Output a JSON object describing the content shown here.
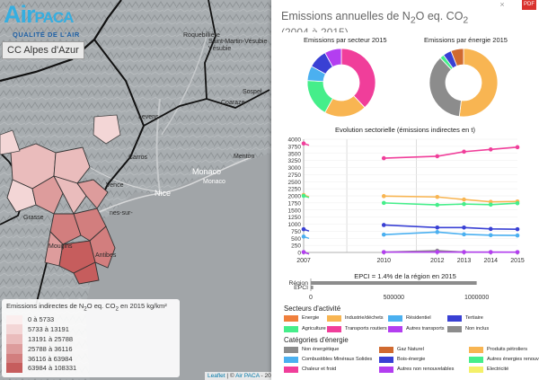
{
  "map": {
    "logo": {
      "brand_main": "Air",
      "brand_sub": "PACA",
      "tagline": "QUALITÉ DE L'AIR"
    },
    "epci_label": "CC Alpes d'Azur",
    "place_names": [
      {
        "text": "Roquebillière"
      },
      {
        "text": "Saint-Martin-Vésubie"
      },
      {
        "text": "Vésubie"
      },
      {
        "text": "Sospel"
      },
      {
        "text": "Coaraze"
      },
      {
        "text": "Levens"
      },
      {
        "text": "Carros"
      },
      {
        "text": "Menton"
      },
      {
        "text": "Monaco"
      },
      {
        "text": "Monaco"
      },
      {
        "text": "Nice"
      },
      {
        "text": "Vence"
      },
      {
        "text": "Grasse"
      },
      {
        "text": "nes-sur-"
      },
      {
        "text": "Mougins"
      },
      {
        "text": "Antibes"
      }
    ],
    "legend": {
      "title_pre": "Emissions indirectes de N",
      "title_sub1": "2",
      "title_mid": "O eq. CO",
      "title_sub2": "2",
      "title_post": " en 2015 kg/km²",
      "classes": [
        {
          "label": "0 à 5733",
          "color": "#fbeeee"
        },
        {
          "label": "5733 à 13191",
          "color": "#f3d6d6"
        },
        {
          "label": "13191 à 25788",
          "color": "#eabcbc"
        },
        {
          "label": "25788 à 36116",
          "color": "#dd9c9c"
        },
        {
          "label": "36116 à 63984",
          "color": "#d27e7e"
        },
        {
          "label": "63984 à 108331",
          "color": "#c65d5d"
        }
      ]
    },
    "attribution": {
      "leaflet": "Leaflet",
      "sep": " | © ",
      "airpaca": "Air PACA",
      "rest": " - 201... © Mapbox"
    }
  },
  "panel": {
    "title_pre": "Emissions annuelles de N",
    "title_sub1": "2",
    "title_mid": "O eq. CO",
    "title_sub2": "2",
    "subtitle": "(2004 à 2015)",
    "close": "×",
    "flag": "PDF",
    "donut_sector_title": "Emissions par secteur 2015",
    "donut_energy_title": "Emissions par énergie 2015",
    "line_title": "Evolution sectorielle (émissions indirectes en t)",
    "epci_pct": "EPCI = 1.4% de la région en 2015",
    "sector_title": "Secteurs d'activité",
    "category_title": "Catégories d'énergie",
    "sectors": [
      {
        "label": "Energie",
        "color": "#f07f3c"
      },
      {
        "label": "Industrie/déchets",
        "color": "#f8b552"
      },
      {
        "label": "Résidentiel",
        "color": "#4bb0f0"
      },
      {
        "label": "Tertiaire",
        "color": "#3940d4"
      },
      {
        "label": "Agriculture",
        "color": "#45ee8a"
      },
      {
        "label": "Transports routiers",
        "color": "#f03e9a"
      },
      {
        "label": "Autres transports",
        "color": "#b33ef0"
      },
      {
        "label": "Non inclus",
        "color": "#8c8c8c"
      }
    ],
    "categories": [
      {
        "label": "Non énergétique",
        "color": "#8c8c8c"
      },
      {
        "label": "Gaz Naturel",
        "color": "#d06a30"
      },
      {
        "label": "Produits pétroliers",
        "color": "#f8b552"
      },
      {
        "label": "Combustibles Minéraux Solides",
        "color": "#4bb0f0"
      },
      {
        "label": "Bois-énergie",
        "color": "#3940d4"
      },
      {
        "label": "Autres énergies renouvelables",
        "color": "#45ee8a"
      },
      {
        "label": "Chaleur et froid",
        "color": "#f03e9a"
      },
      {
        "label": "Autres non renouvelables",
        "color": "#b33ef0"
      },
      {
        "label": "Electricité",
        "color": "#f4f06a"
      }
    ]
  },
  "chart_data": [
    {
      "type": "pie",
      "title": "Emissions par secteur 2015",
      "slices": [
        {
          "name": "Transports routiers",
          "value": 38,
          "color": "#f03e9a"
        },
        {
          "name": "Industrie/déchets",
          "value": 20,
          "color": "#f8b552"
        },
        {
          "name": "Agriculture",
          "value": 18,
          "color": "#45ee8a"
        },
        {
          "name": "Résidentiel",
          "value": 7,
          "color": "#4bb0f0"
        },
        {
          "name": "Tertiaire",
          "value": 9,
          "color": "#3940d4"
        },
        {
          "name": "Autres transports",
          "value": 8,
          "color": "#b33ef0"
        }
      ]
    },
    {
      "type": "pie",
      "title": "Emissions par énergie 2015",
      "slices": [
        {
          "name": "Produits pétroliers",
          "value": 52,
          "color": "#f8b552"
        },
        {
          "name": "Non énergétique",
          "value": 36,
          "color": "#8c8c8c"
        },
        {
          "name": "Autres énergies renouvelables",
          "value": 2,
          "color": "#45ee8a"
        },
        {
          "name": "Bois-énergie",
          "value": 4,
          "color": "#3940d4"
        },
        {
          "name": "Gaz Naturel",
          "value": 6,
          "color": "#d06a30"
        }
      ]
    },
    {
      "type": "line",
      "title": "Evolution sectorielle (émissions indirectes en t)",
      "x": [
        2007,
        2010,
        2012,
        2013,
        2014,
        2015
      ],
      "x_tick_labels": [
        "2007",
        "2010",
        "2012",
        "2013",
        "2014",
        "2015"
      ],
      "ylim": [
        0,
        4000
      ],
      "y_ticks": [
        0,
        250,
        500,
        750,
        1000,
        1250,
        1500,
        1750,
        2000,
        2250,
        2500,
        2750,
        3000,
        3250,
        3500,
        3750,
        4000
      ],
      "y_tick_labels": [
        "0",
        "250",
        "500",
        "750",
        "1000",
        "1250",
        "1500",
        "1750",
        "2000",
        "2250",
        "2500",
        "2750",
        "3000",
        "3250",
        "3500",
        "3750",
        "4000"
      ],
      "series": [
        {
          "color": "#f03e9a",
          "values": [
            3850,
            3330,
            3400,
            3560,
            3640,
            3720
          ]
        },
        {
          "color": "#f8b552",
          "values": [
            2030,
            1990,
            1960,
            1870,
            1790,
            1800
          ]
        },
        {
          "color": "#45ee8a",
          "values": [
            2000,
            1750,
            1680,
            1710,
            1690,
            1740
          ]
        },
        {
          "color": "#3940d4",
          "values": [
            820,
            970,
            880,
            880,
            830,
            820
          ]
        },
        {
          "color": "#4bb0f0",
          "values": [
            560,
            630,
            720,
            640,
            610,
            600
          ]
        },
        {
          "color": "#8c8c8c",
          "values": [
            10,
            12,
            60,
            15,
            10,
            8
          ]
        },
        {
          "color": "#b33ef0",
          "values": [
            10,
            12,
            15,
            12,
            10,
            10
          ]
        }
      ]
    },
    {
      "type": "bar",
      "orientation": "horizontal",
      "categories": [
        "Région",
        "EPCI"
      ],
      "values": [
        1000000,
        14000
      ],
      "xlim": [
        0,
        1300000
      ],
      "x_ticks": [
        0,
        500000,
        1000000
      ],
      "x_tick_labels": [
        "0",
        "500000",
        "1000000"
      ],
      "color": "#8c8c8c"
    }
  ]
}
